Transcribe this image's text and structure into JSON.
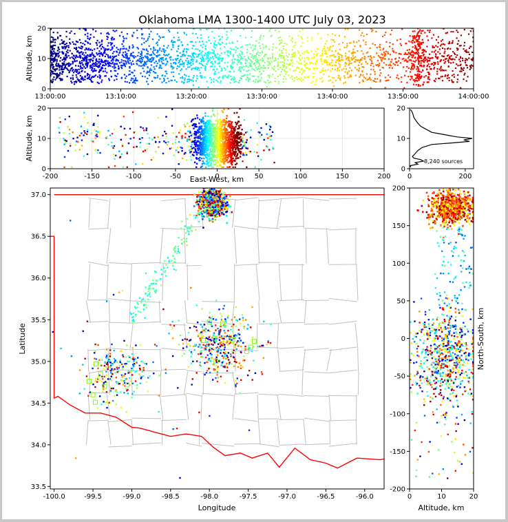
{
  "colors": {
    "state_border": "#ff0000",
    "county_lines": "#c0c0c0",
    "station_marker": "#7cfc00",
    "colormap": [
      "#00007f",
      "#0000ff",
      "#007fff",
      "#00ffff",
      "#7fff7f",
      "#ffff00",
      "#ff7f00",
      "#ff0000",
      "#7f0000"
    ]
  },
  "chart_data": [
    {
      "id": "time_altitude",
      "type": "scatter",
      "title": "Oklahoma LMA 1300-1400 UTC July 03, 2023",
      "xlabel": "",
      "ylabel": "Altitude, km",
      "x_ticks": [
        "13:00:00",
        "13:10:00",
        "13:20:00",
        "13:30:00",
        "13:40:00",
        "13:50:00",
        "14:00:00"
      ],
      "y_ticks": [
        "0",
        "10",
        "20"
      ],
      "xlim": [
        "13:00:00",
        "14:00:00"
      ],
      "ylim": [
        0,
        20
      ],
      "color_by": "time"
    },
    {
      "id": "eastwest_altitude",
      "type": "scatter",
      "xlabel": "East-West, km",
      "ylabel": "Altitude, km",
      "x_ticks": [
        "-200",
        "-150",
        "-100",
        "-50",
        "0",
        "50",
        "100",
        "150",
        "200"
      ],
      "y_ticks": [
        "0",
        "10",
        "20"
      ],
      "xlim": [
        -200,
        200
      ],
      "ylim": [
        0,
        20
      ],
      "grid": true
    },
    {
      "id": "altitude_histogram",
      "type": "line",
      "annotation": "8,240 sources",
      "x_ticks": [
        "0",
        "200"
      ],
      "y_ticks": [
        "0",
        "10",
        "20"
      ],
      "xlim": [
        0,
        230
      ],
      "ylim": [
        0,
        20
      ],
      "series": [
        {
          "altitude_km": [
            0.5,
            1,
            1.5,
            2,
            2.5,
            3,
            3.5,
            4,
            5,
            6,
            7,
            8,
            8.5,
            9,
            9.5,
            10,
            10.5,
            11,
            11.5,
            12,
            13,
            14,
            15,
            16,
            17,
            18,
            19,
            19.5
          ],
          "count": [
            5,
            2,
            30,
            20,
            50,
            40,
            15,
            10,
            20,
            30,
            45,
            80,
            150,
            215,
            195,
            225,
            170,
            140,
            110,
            80,
            60,
            40,
            30,
            22,
            15,
            12,
            8,
            3
          ]
        }
      ]
    },
    {
      "id": "plan_view",
      "type": "scatter",
      "xlabel": "Longitude",
      "ylabel": "Latitude",
      "x_ticks": [
        "-100.0",
        "-99.5",
        "-99.0",
        "-98.5",
        "-98.0",
        "-97.5",
        "-97.0",
        "-96.5",
        "-96.0"
      ],
      "y_ticks": [
        "33.5",
        "34.0",
        "34.5",
        "35.0",
        "35.5",
        "36.0",
        "36.5",
        "37.0"
      ],
      "xlim": [
        -100.05,
        -95.75
      ],
      "ylim": [
        33.47,
        37.08
      ],
      "stations": [
        {
          "lon": -99.55,
          "lat": 34.76
        },
        {
          "lon": -99.5,
          "lat": 34.6
        },
        {
          "lon": -99.47,
          "lat": 34.51
        },
        {
          "lon": -99.46,
          "lat": 34.97
        },
        {
          "lon": -99.4,
          "lat": 34.85
        },
        {
          "lon": -99.35,
          "lat": 34.7
        },
        {
          "lon": -99.06,
          "lat": 34.72
        },
        {
          "lon": -98.08,
          "lat": 35.25
        },
        {
          "lon": -98.0,
          "lat": 35.47
        },
        {
          "lon": -97.93,
          "lat": 35.28
        },
        {
          "lon": -97.92,
          "lat": 35.0
        },
        {
          "lon": -97.83,
          "lat": 35.45
        },
        {
          "lon": -97.7,
          "lat": 35.26
        },
        {
          "lon": -97.52,
          "lat": 35.12
        },
        {
          "lon": -97.47,
          "lat": 35.17
        },
        {
          "lon": -97.42,
          "lat": 35.24
        }
      ]
    },
    {
      "id": "altitude_northsouth",
      "type": "scatter",
      "xlabel": "Altitude, km",
      "ylabel": "North-South, km",
      "x_ticks": [
        "0",
        "10",
        "20"
      ],
      "y_ticks": [
        "-200",
        "-150",
        "-100",
        "-50",
        "0",
        "50",
        "100",
        "150",
        "200"
      ],
      "xlim": [
        0,
        20
      ],
      "ylim": [
        -200,
        200
      ]
    }
  ]
}
